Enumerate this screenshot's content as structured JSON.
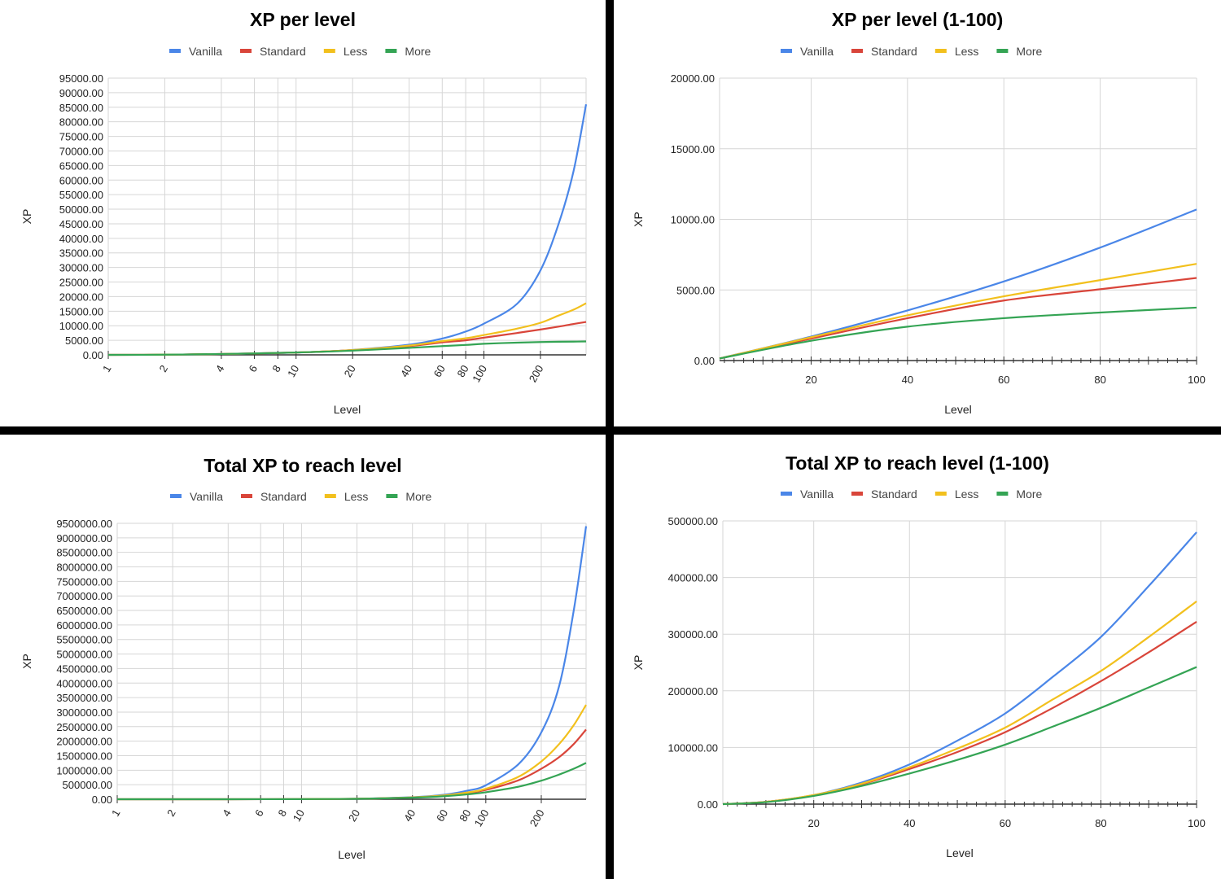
{
  "series_colors": {
    "Vanilla": "#4a86e8",
    "Standard": "#d9453a",
    "Less": "#f2c01d",
    "More": "#34a454"
  },
  "chart_data": [
    {
      "type": "line",
      "title": "XP per level",
      "xlabel": "Level",
      "ylabel": "XP",
      "x_scale": "log",
      "xlim": [
        1,
        350
      ],
      "x_ticks": [
        1,
        2,
        4,
        6,
        8,
        10,
        20,
        40,
        60,
        80,
        100,
        200
      ],
      "ylim": [
        0,
        95000
      ],
      "y_ticks": [
        0,
        5000,
        10000,
        15000,
        20000,
        25000,
        30000,
        35000,
        40000,
        45000,
        50000,
        55000,
        60000,
        65000,
        70000,
        75000,
        80000,
        85000,
        90000,
        95000
      ],
      "grid": true,
      "legend_position": "top",
      "x": [
        1,
        2,
        4,
        10,
        20,
        40,
        60,
        80,
        100,
        150,
        200,
        250,
        300,
        350
      ],
      "series": [
        {
          "name": "Vanilla",
          "values": [
            0,
            60,
            300,
            800,
            1700,
            3500,
            5600,
            8000,
            10700,
            17500,
            29000,
            45000,
            63000,
            86000
          ]
        },
        {
          "name": "Standard",
          "values": [
            0,
            60,
            300,
            800,
            1600,
            3000,
            4300,
            5000,
            5900,
            7500,
            8700,
            9700,
            10600,
            11300
          ]
        },
        {
          "name": "Less",
          "values": [
            0,
            60,
            300,
            800,
            1650,
            3200,
            4700,
            5700,
            6800,
            9000,
            11000,
            13500,
            15500,
            17700
          ]
        },
        {
          "name": "More",
          "values": [
            0,
            60,
            300,
            800,
            1450,
            2400,
            3000,
            3400,
            3800,
            4200,
            4400,
            4500,
            4550,
            4600
          ]
        }
      ]
    },
    {
      "type": "line",
      "title": "XP per level (1-100)",
      "xlabel": "Level",
      "ylabel": "XP",
      "xlim": [
        1,
        100
      ],
      "x_ticks": [
        20,
        40,
        60,
        80,
        100
      ],
      "ylim": [
        0,
        20000
      ],
      "y_ticks": [
        0,
        5000,
        10000,
        15000,
        20000
      ],
      "grid": true,
      "legend_position": "top",
      "x": [
        1,
        20,
        40,
        60,
        80,
        100
      ],
      "series": [
        {
          "name": "Vanilla",
          "values": [
            150,
            1700,
            3550,
            5600,
            8000,
            10700
          ]
        },
        {
          "name": "Standard",
          "values": [
            150,
            1550,
            3000,
            4250,
            5050,
            5850
          ]
        },
        {
          "name": "Less",
          "values": [
            150,
            1650,
            3200,
            4550,
            5700,
            6850
          ]
        },
        {
          "name": "More",
          "values": [
            150,
            1400,
            2400,
            3000,
            3400,
            3750
          ]
        }
      ]
    },
    {
      "type": "line",
      "title": "Total XP to reach level",
      "xlabel": "Level",
      "ylabel": "XP",
      "x_scale": "log",
      "xlim": [
        1,
        350
      ],
      "x_ticks": [
        1,
        2,
        4,
        6,
        8,
        10,
        20,
        40,
        60,
        80,
        100,
        200
      ],
      "ylim": [
        0,
        9500000
      ],
      "y_ticks": [
        0,
        500000,
        1000000,
        1500000,
        2000000,
        2500000,
        3000000,
        3500000,
        4000000,
        4500000,
        5000000,
        5500000,
        6000000,
        6500000,
        7000000,
        7500000,
        8000000,
        8500000,
        9000000,
        9500000
      ],
      "grid": true,
      "legend_position": "top",
      "x": [
        1,
        2,
        4,
        10,
        20,
        40,
        60,
        80,
        100,
        150,
        200,
        250,
        300,
        350
      ],
      "series": [
        {
          "name": "Vanilla",
          "values": [
            0,
            100,
            800,
            5000,
            17000,
            70000,
            160000,
            300000,
            480000,
            1200000,
            2300000,
            3900000,
            6500000,
            9400000
          ]
        },
        {
          "name": "Standard",
          "values": [
            0,
            100,
            800,
            5000,
            16000,
            60000,
            125000,
            215000,
            320000,
            650000,
            1050000,
            1450000,
            1900000,
            2400000
          ]
        },
        {
          "name": "Less",
          "values": [
            0,
            100,
            800,
            5000,
            16500,
            63000,
            135000,
            235000,
            360000,
            770000,
            1300000,
            1900000,
            2550000,
            3250000
          ]
        },
        {
          "name": "More",
          "values": [
            0,
            100,
            800,
            4500,
            15000,
            53000,
            105000,
            170000,
            240000,
            430000,
            640000,
            850000,
            1050000,
            1250000
          ]
        }
      ]
    },
    {
      "type": "line",
      "title": "Total XP to reach level (1-100)",
      "xlabel": "Level",
      "ylabel": "XP",
      "xlim": [
        1,
        100
      ],
      "x_ticks": [
        20,
        40,
        60,
        80,
        100
      ],
      "ylim": [
        0,
        500000
      ],
      "y_ticks": [
        0,
        100000,
        200000,
        300000,
        400000,
        500000
      ],
      "grid": true,
      "legend_position": "top",
      "x": [
        1,
        10,
        20,
        30,
        40,
        50,
        60,
        70,
        80,
        90,
        100
      ],
      "series": [
        {
          "name": "Vanilla",
          "values": [
            0,
            4000,
            16000,
            38000,
            70000,
            112000,
            160000,
            225000,
            295000,
            385000,
            480000
          ]
        },
        {
          "name": "Standard",
          "values": [
            0,
            4000,
            15500,
            35000,
            62000,
            92000,
            127000,
            170000,
            217000,
            268000,
            322000
          ]
        },
        {
          "name": "Less",
          "values": [
            0,
            4000,
            16000,
            36000,
            65000,
            98000,
            135000,
            185000,
            235000,
            295000,
            358000
          ]
        },
        {
          "name": "More",
          "values": [
            0,
            3500,
            14500,
            32000,
            54000,
            78000,
            105000,
            137000,
            170000,
            206000,
            242000
          ]
        }
      ]
    }
  ]
}
